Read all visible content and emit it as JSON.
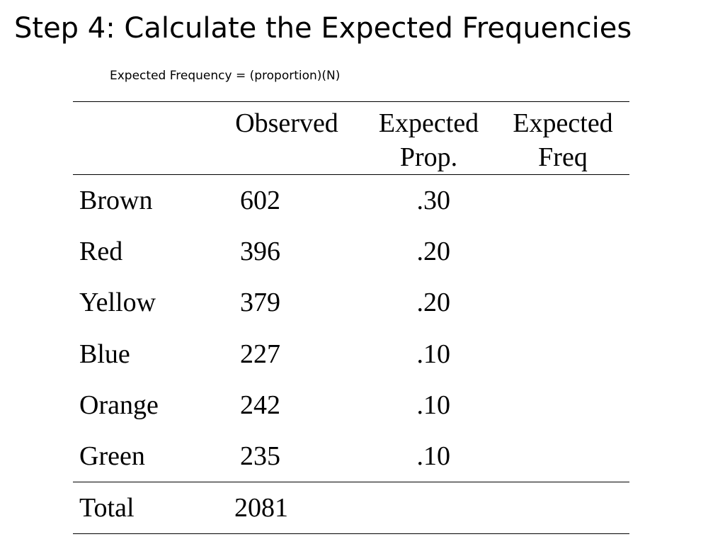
{
  "slide": {
    "title": "Step 4: Calculate the Expected Frequencies",
    "formula": "Expected Frequency = (proportion)(N)"
  },
  "table": {
    "headers": {
      "category": "",
      "observed": "Observed",
      "expected_prop_line1": "Expected",
      "expected_prop_line2": "Prop.",
      "expected_freq_line1": "Expected",
      "expected_freq_line2": "Freq"
    },
    "rows": [
      {
        "category": "Brown",
        "observed": "602",
        "expected_prop": ".30",
        "expected_freq": ""
      },
      {
        "category": "Red",
        "observed": "396",
        "expected_prop": ".20",
        "expected_freq": ""
      },
      {
        "category": "Yellow",
        "observed": "379",
        "expected_prop": ".20",
        "expected_freq": ""
      },
      {
        "category": "Blue",
        "observed": "227",
        "expected_prop": ".10",
        "expected_freq": ""
      },
      {
        "category": "Orange",
        "observed": "242",
        "expected_prop": ".10",
        "expected_freq": ""
      },
      {
        "category": "Green",
        "observed": "235",
        "expected_prop": ".10",
        "expected_freq": ""
      }
    ],
    "total": {
      "category": "Total",
      "observed": "2081",
      "expected_prop": "",
      "expected_freq": ""
    }
  }
}
